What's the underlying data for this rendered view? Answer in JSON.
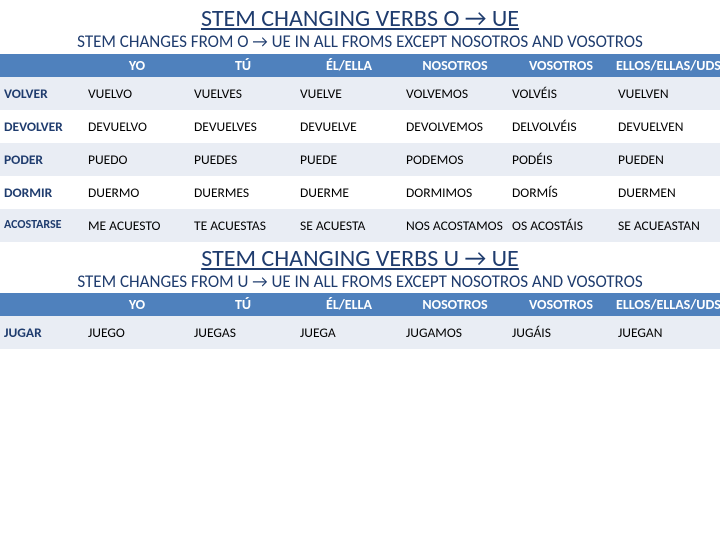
{
  "section1": {
    "title": "STEM CHANGING VERBS  O → UE",
    "subtitle": "STEM CHANGES FROM O → UE IN ALL FROMS EXCEPT NOSOTROS AND VOSOTROS",
    "columns": [
      "YO",
      "TÚ",
      "ÉL/ELLA",
      "NOSOTROS",
      "VOSOTROS",
      "ELLOS/ELLAS/UDS"
    ],
    "rows": [
      {
        "verb": "VOLVER",
        "cells": [
          "VUELVO",
          "VUELVES",
          "VUELVE",
          "VOLVEMOS",
          "VOLVÉIS",
          "VUELVEN"
        ]
      },
      {
        "verb": "DEVOLVER",
        "cells": [
          "DEVUELVO",
          "DEVUELVES",
          "DEVUELVE",
          "DEVOLVEMOS",
          "DELVOLVÉIS",
          "DEVUELVEN"
        ]
      },
      {
        "verb": "PODER",
        "cells": [
          "PUEDO",
          "PUEDES",
          "PUEDE",
          "PODEMOS",
          "PODÉIS",
          "PUEDEN"
        ]
      },
      {
        "verb": "DORMIR",
        "cells": [
          "DUERMO",
          "DUERMES",
          "DUERME",
          "DORMIMOS",
          "DORMÍS",
          "DUERMEN"
        ]
      },
      {
        "verb": "ACOSTARSE",
        "cells": [
          "ME ACUESTO",
          "TE ACUESTAS",
          "SE ACUESTA",
          "NOS ACOSTAMOS",
          "OS ACOSTÁIS",
          "SE ACUEASTAN"
        ]
      }
    ]
  },
  "section2": {
    "title": "STEM CHANGING VERBS  U → UE",
    "subtitle": "STEM CHANGES FROM U → UE IN ALL FROMS EXCEPT NOSOTROS AND VOSOTROS",
    "columns": [
      "YO",
      "TÚ",
      "ÉL/ELLA",
      "NOSOTROS",
      "VOSOTROS",
      "ELLOS/ELLAS/UDS"
    ],
    "rows": [
      {
        "verb": "JUGAR",
        "cells": [
          "JUEGO",
          "JUEGAS",
          "JUEGA",
          "JUGAMOS",
          "JUGÁIS",
          "JUEGAN"
        ]
      }
    ]
  },
  "style": {
    "header_bg": "#4f81bd",
    "header_fg": "#ffffff",
    "band_bg": "#e9edf4",
    "title_color": "#1f3c6e",
    "label_color": "#1f3c6e"
  }
}
